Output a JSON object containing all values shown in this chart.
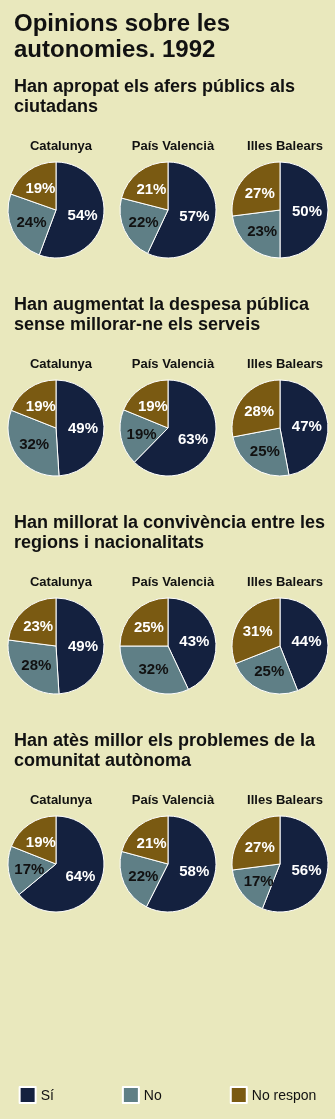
{
  "chart_data": {
    "type": "pie",
    "title": "Opinions sobre les autonomies. 1992",
    "annotations": [
      "Han apropat els afers públics als ciutadans",
      "Han augmentat la despesa pública sense millorar-ne els serveis",
      "Han millorat la convivència entre les regions i nacionalitats",
      "Han atès millor els problemes de la comunitat autònoma"
    ],
    "categories": [
      "Sí",
      "No",
      "No respon"
    ],
    "colors": [
      "#14213f",
      "#5f7f86",
      "#7a5a12"
    ],
    "legend": "bottom",
    "series": [
      {
        "name": "Catalunya",
        "values": [
          54,
          24,
          19
        ],
        "value_labels": [
          "54%",
          "24%",
          "19%"
        ]
      },
      {
        "name": "País Valencià",
        "values": [
          57,
          22,
          21
        ],
        "value_labels": [
          "57%",
          "22%",
          "21%"
        ]
      },
      {
        "name": "Illes Balears",
        "values": [
          50,
          23,
          27
        ],
        "value_labels": [
          "50%",
          "23%",
          "27%"
        ]
      },
      {
        "name": "Catalunya",
        "values": [
          49,
          32,
          19
        ],
        "value_labels": [
          "49%",
          "32%",
          "19%"
        ]
      },
      {
        "name": "País Valencià",
        "values": [
          63,
          19,
          19
        ],
        "value_labels": [
          "63%",
          "19%",
          "19%"
        ]
      },
      {
        "name": "Illes Balears",
        "values": [
          47,
          25,
          28
        ],
        "value_labels": [
          "47%",
          "25%",
          "28%"
        ]
      },
      {
        "name": "Catalunya",
        "values": [
          49,
          28,
          23
        ],
        "value_labels": [
          "49%",
          "28%",
          "23%"
        ]
      },
      {
        "name": "País Valencià",
        "values": [
          43,
          32,
          25
        ],
        "value_labels": [
          "43%",
          "32%",
          "25%"
        ]
      },
      {
        "name": "Illes Balears",
        "values": [
          44,
          25,
          31
        ],
        "value_labels": [
          "44%",
          "25%",
          "31%"
        ]
      },
      {
        "name": "Catalunya",
        "values": [
          64,
          17,
          19
        ],
        "value_labels": [
          "64%",
          "17%",
          "19%"
        ]
      },
      {
        "name": "País Valencià",
        "values": [
          58,
          22,
          21
        ],
        "value_labels": [
          "58%",
          "22%",
          "21%"
        ]
      },
      {
        "name": "Illes Balears",
        "values": [
          56,
          17,
          27
        ],
        "value_labels": [
          "56%",
          "17%",
          "27%"
        ]
      }
    ]
  }
}
